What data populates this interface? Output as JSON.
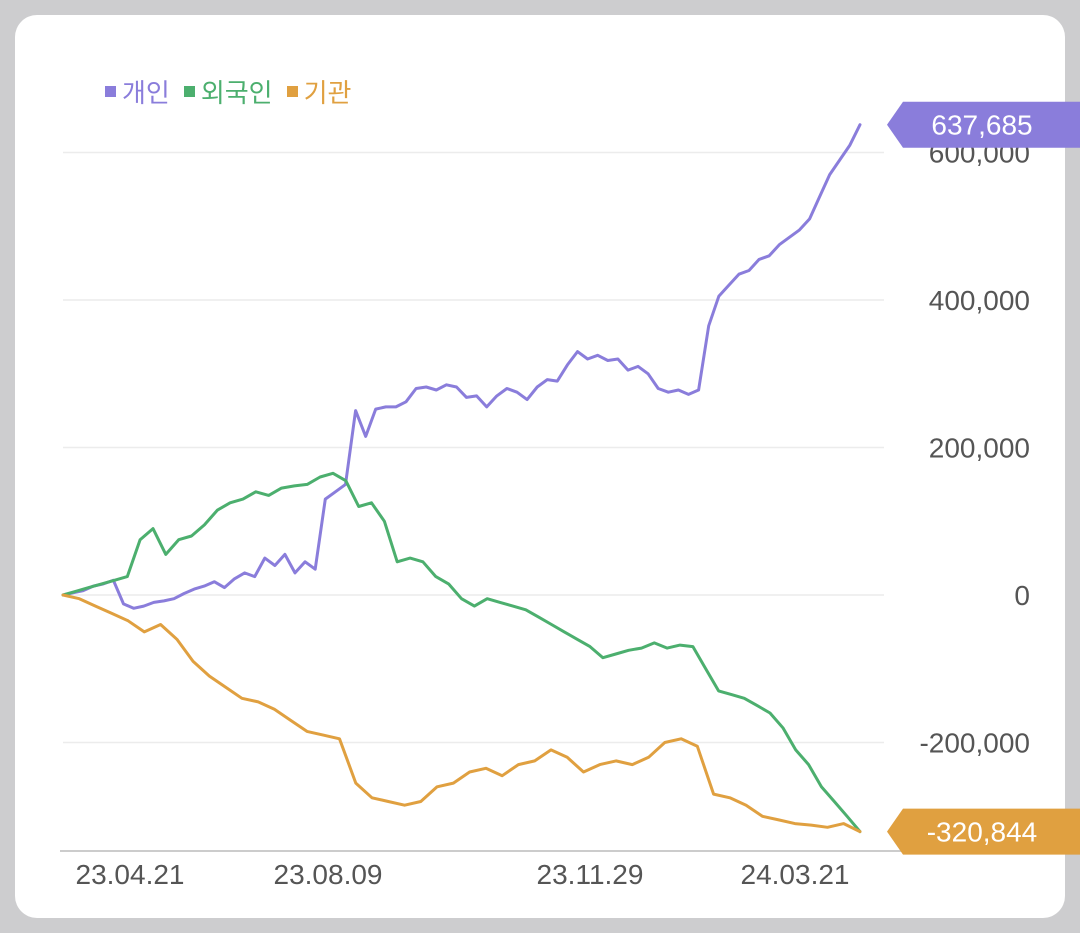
{
  "chart_data": {
    "type": "line",
    "legend_position": "top-left",
    "grid": true,
    "ylim": [
      -320844,
      637685
    ],
    "y_ticks": [
      600000,
      400000,
      200000,
      0,
      -200000
    ],
    "y_tick_labels": [
      "600,000",
      "400,000",
      "200,000",
      "0",
      "-200,000"
    ],
    "x_ticks": [
      "23.04.21",
      "23.08.09",
      "23.11.29",
      "24.03.21"
    ],
    "series": [
      {
        "name": "개인",
        "color": "#8a7ddb",
        "values": [
          0,
          3000,
          6000,
          12000,
          15000,
          20000,
          -12000,
          -18000,
          -15000,
          -10000,
          -8000,
          -5000,
          2000,
          8000,
          12000,
          18000,
          10000,
          22000,
          30000,
          25000,
          50000,
          40000,
          55000,
          30000,
          45000,
          35000,
          130000,
          140000,
          150000,
          250000,
          215000,
          252000,
          255000,
          255000,
          262000,
          280000,
          282000,
          278000,
          285000,
          282000,
          268000,
          270000,
          255000,
          270000,
          280000,
          275000,
          265000,
          282000,
          292000,
          290000,
          312000,
          330000,
          320000,
          325000,
          318000,
          320000,
          305000,
          310000,
          300000,
          280000,
          275000,
          278000,
          272000,
          278000,
          365000,
          405000,
          420000,
          435000,
          440000,
          455000,
          460000,
          475000,
          485000,
          495000,
          510000,
          540000,
          570000,
          590000,
          610000,
          637685
        ]
      },
      {
        "name": "외국인",
        "color": "#4caf6e",
        "values": [
          0,
          5000,
          10000,
          15000,
          20000,
          25000,
          75000,
          90000,
          55000,
          75000,
          80000,
          95000,
          115000,
          125000,
          130000,
          140000,
          135000,
          145000,
          148000,
          150000,
          160000,
          165000,
          155000,
          120000,
          125000,
          100000,
          45000,
          50000,
          45000,
          25000,
          15000,
          -5000,
          -15000,
          -5000,
          -10000,
          -15000,
          -20000,
          -30000,
          -40000,
          -50000,
          -60000,
          -70000,
          -85000,
          -80000,
          -75000,
          -72000,
          -65000,
          -72000,
          -68000,
          -70000,
          -100000,
          -130000,
          -135000,
          -140000,
          -150000,
          -160000,
          -180000,
          -210000,
          -230000,
          -260000,
          -280000,
          -300000,
          -320844
        ]
      },
      {
        "name": "기관",
        "color": "#e0a040",
        "values": [
          0,
          -5000,
          -15000,
          -25000,
          -35000,
          -50000,
          -40000,
          -60000,
          -90000,
          -110000,
          -125000,
          -140000,
          -145000,
          -155000,
          -170000,
          -185000,
          -190000,
          -195000,
          -255000,
          -275000,
          -280000,
          -285000,
          -280000,
          -260000,
          -255000,
          -240000,
          -235000,
          -245000,
          -230000,
          -225000,
          -210000,
          -220000,
          -240000,
          -230000,
          -225000,
          -230000,
          -220000,
          -200000,
          -195000,
          -205000,
          -270000,
          -275000,
          -285000,
          -300000,
          -305000,
          -310000,
          -312000,
          -315000,
          -310000,
          -320844
        ]
      }
    ],
    "end_labels": [
      {
        "series": "개인",
        "text": "637,685",
        "color": "#8a7ddb"
      },
      {
        "series": "기관",
        "text": "-320,844",
        "color": "#e0a040"
      }
    ]
  }
}
